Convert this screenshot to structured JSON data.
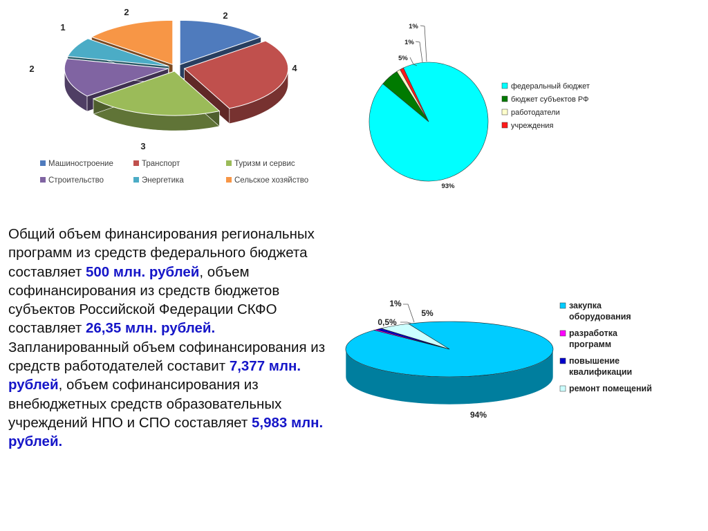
{
  "chart_data": [
    {
      "type": "pie",
      "style": "3d-exploded",
      "categories": [
        "Машиностроение",
        "Транспорт",
        "Туризм и сервис",
        "Строительство",
        "Энергетика",
        "Сельское хозяйство"
      ],
      "values": [
        2,
        4,
        3,
        2,
        1,
        2
      ],
      "data_labels": [
        "2",
        "4",
        "3",
        "2",
        "1",
        "2"
      ],
      "colors": [
        "#4f7bbd",
        "#c0504d",
        "#9bbb59",
        "#8064a2",
        "#4bacc6",
        "#f79646"
      ],
      "legend_position": "bottom"
    },
    {
      "type": "pie",
      "categories": [
        "федеральный бюджет",
        "бюджет субъектов РФ",
        "работодатели",
        "учреждения"
      ],
      "values": [
        93,
        5,
        1,
        1
      ],
      "data_labels": [
        "93%",
        "5%",
        "1%",
        "1%"
      ],
      "colors": [
        "#00ffff",
        "#007a00",
        "#ffffcc",
        "#ff1a1a"
      ],
      "legend_position": "right"
    },
    {
      "type": "pie",
      "style": "3d",
      "categories": [
        "закупка оборудования",
        "разработка программ",
        "повышение квалификации",
        "ремонт помещений"
      ],
      "values": [
        94,
        0.5,
        1,
        5
      ],
      "data_labels": [
        "94%",
        "0,5%",
        "1%",
        "5%"
      ],
      "colors": [
        "#00ccff",
        "#ff00ff",
        "#0000cc",
        "#ccffff"
      ],
      "legend_position": "right"
    }
  ],
  "text": {
    "p1_a": "Общий объем финансирования региональных программ из средств федерального бюджета составляет ",
    "p1_b": "500 млн. рублей",
    "p1_c": ", объем софинансирования из средств бюджетов субъектов Российской Федерации СКФО составляет ",
    "p1_d": "26,35 млн. рублей.",
    "p2_a": "Запланированный объем софинансирования из средств работодателей составит ",
    "p2_b": "7,377 млн. рублей",
    "p2_c": ", объем софинансирования из внебюджетных средств образовательных учреждений НПО и СПО составляет ",
    "p2_d": "5,983 млн. рублей."
  }
}
